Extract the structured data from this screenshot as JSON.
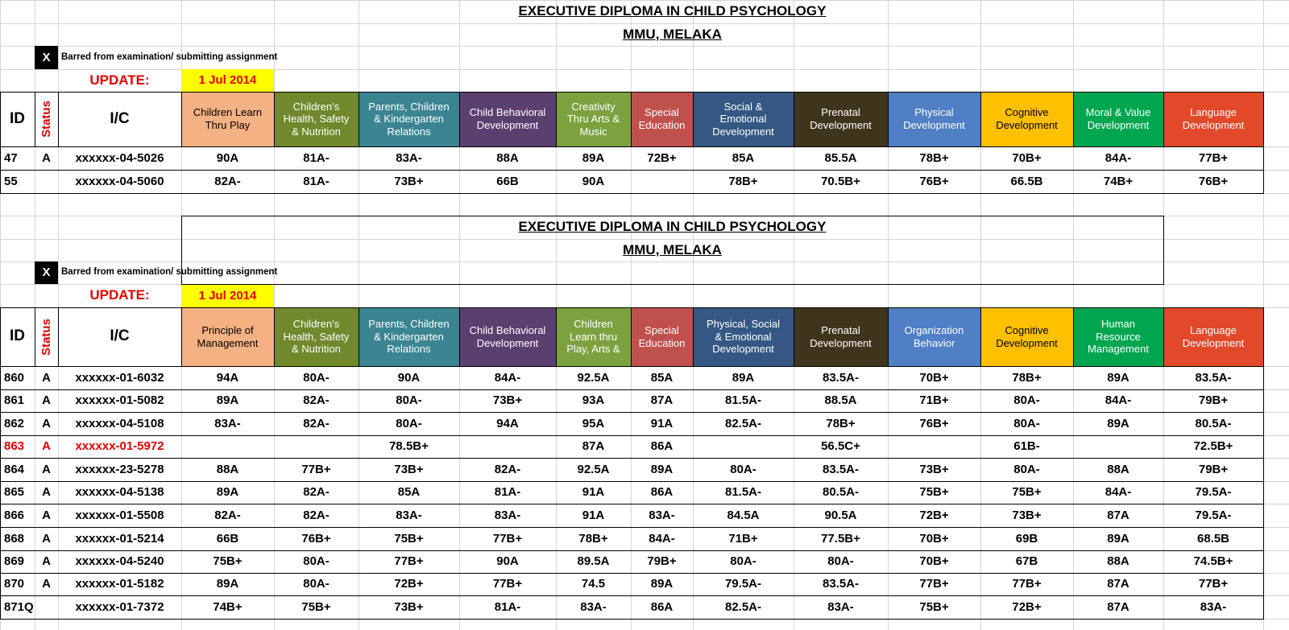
{
  "colors": {
    "gridline": "#d4d4d4",
    "border": "#000000",
    "accent_red": "#e00000",
    "update_highlight": "#ffff00",
    "subject_colors": [
      "#f4b183",
      "#70892d",
      "#3b8592",
      "#5b3f6e",
      "#7ba23f",
      "#c0504d",
      "#345883",
      "#3f341c",
      "#4f7fc4",
      "#ffc000",
      "#00a64f",
      "#e2492a"
    ]
  },
  "sections": [
    {
      "title": "EXECUTIVE DIPLOMA IN CHILD PSYCHOLOGY",
      "subtitle": "MMU, MELAKA",
      "barred_mark": "X",
      "barred_note": "Barred from examination/ submitting assignment",
      "update_label": "UPDATE:",
      "update_date": "1 Jul 2014",
      "id_header": "ID",
      "status_header": "Status",
      "ic_header": "I/C",
      "subjects": [
        {
          "label": "Children Learn\nThru Play",
          "color": "#f4b183",
          "icon": "",
          "light": false
        },
        {
          "label": "Children's\nHealth, Safety\n& Nutrition",
          "color": "#70892d",
          "light": true
        },
        {
          "label": "Parents, Children\n& Kindergarten\nRelations",
          "color": "#3b8592",
          "light": true
        },
        {
          "label": "Child Behavioral\nDevelopment",
          "color": "#5b3f6e",
          "light": true
        },
        {
          "label": "Creativity\nThru Arts &\nMusic",
          "color": "#7ba23f",
          "light": true
        },
        {
          "label": "Special\nEducation",
          "color": "#c0504d",
          "light": true
        },
        {
          "label": "Social &\nEmotional\nDevelopment",
          "color": "#345883",
          "light": true
        },
        {
          "label": "Prenatal\nDevelopment",
          "color": "#3f341c",
          "light": true
        },
        {
          "label": "Physical\nDevelopment",
          "color": "#4f7fc4",
          "light": true
        },
        {
          "label": "Cognitive\nDevelopment",
          "color": "#ffc000",
          "light": false
        },
        {
          "label": "Moral & Value\nDevelopment",
          "color": "#00a64f",
          "light": true
        },
        {
          "label": "Language\nDevelopment",
          "color": "#e2492a",
          "light": true
        }
      ],
      "rows": [
        {
          "id": "47",
          "status": "A",
          "ic": "xxxxxx-04-5026",
          "red": false,
          "grades": [
            "90A",
            "81A-",
            "83A-",
            "88A",
            "89A",
            "72B+",
            "85A",
            "85.5A",
            "78B+",
            "70B+",
            "84A-",
            "77B+"
          ]
        },
        {
          "id": "55",
          "status": "",
          "ic": "xxxxxx-04-5060",
          "red": false,
          "grades": [
            "82A-",
            "81A-",
            "73B+",
            "66B",
            "90A",
            "",
            "78B+",
            "70.5B+",
            "76B+",
            "66.5B",
            "74B+",
            "76B+"
          ]
        }
      ]
    },
    {
      "title": "EXECUTIVE DIPLOMA IN CHILD PSYCHOLOGY",
      "subtitle": "MMU, MELAKA",
      "barred_mark": "X",
      "barred_note": "Barred from examination/ submitting assignment",
      "update_label": "UPDATE:",
      "update_date": "1 Jul 2014",
      "id_header": "ID",
      "status_header": "Status",
      "ic_header": "I/C",
      "subjects": [
        {
          "label": "Principle of\nManagement",
          "color": "#f4b183",
          "light": false
        },
        {
          "label": "Children's\nHealth, Safety\n& Nutrition",
          "color": "#70892d",
          "light": true
        },
        {
          "label": "Parents, Children\n& Kindergarten\nRelations",
          "color": "#3b8592",
          "light": true
        },
        {
          "label": "Child Behavioral\nDevelopment",
          "color": "#5b3f6e",
          "light": true
        },
        {
          "label": "Children\nLearn thru\nPlay, Arts &",
          "color": "#7ba23f",
          "light": true
        },
        {
          "label": "Special\nEducation",
          "color": "#c0504d",
          "light": true
        },
        {
          "label": "Physical, Social\n& Emotional\nDevelopment",
          "color": "#345883",
          "light": true
        },
        {
          "label": "Prenatal\nDevelopment",
          "color": "#3f341c",
          "light": true
        },
        {
          "label": "Organization\nBehavior",
          "color": "#4f7fc4",
          "light": true
        },
        {
          "label": "Cognitive\nDevelopment",
          "color": "#ffc000",
          "light": false
        },
        {
          "label": "Human\nResource\nManagement",
          "color": "#00a64f",
          "light": true
        },
        {
          "label": "Language\nDevelopment",
          "color": "#e2492a",
          "light": true
        }
      ],
      "rows": [
        {
          "id": "860",
          "status": "A",
          "ic": "xxxxxx-01-6032",
          "red": false,
          "grades": [
            "94A",
            "80A-",
            "90A",
            "84A-",
            "92.5A",
            "85A",
            "89A",
            "83.5A-",
            "70B+",
            "78B+",
            "89A",
            "83.5A-"
          ]
        },
        {
          "id": "861",
          "status": "A",
          "ic": "xxxxxx-01-5082",
          "red": false,
          "grades": [
            "89A",
            "82A-",
            "80A-",
            "73B+",
            "93A",
            "87A",
            "81.5A-",
            "88.5A",
            "71B+",
            "80A-",
            "84A-",
            "79B+"
          ]
        },
        {
          "id": "862",
          "status": "A",
          "ic": "xxxxxx-04-5108",
          "red": false,
          "grades": [
            "83A-",
            "82A-",
            "80A-",
            "94A",
            "95A",
            "91A",
            "82.5A-",
            "78B+",
            "76B+",
            "80A-",
            "89A",
            "80.5A-"
          ]
        },
        {
          "id": "863",
          "status": "A",
          "ic": "xxxxxx-01-5972",
          "red": true,
          "grades": [
            "",
            "",
            "78.5B+",
            "",
            "87A",
            "86A",
            "",
            "56.5C+",
            "",
            "61B-",
            "",
            "72.5B+"
          ]
        },
        {
          "id": "864",
          "status": "A",
          "ic": "xxxxxx-23-5278",
          "red": false,
          "grades": [
            "88A",
            "77B+",
            "73B+",
            "82A-",
            "92.5A",
            "89A",
            "80A-",
            "83.5A-",
            "73B+",
            "80A-",
            "88A",
            "79B+"
          ]
        },
        {
          "id": "865",
          "status": "A",
          "ic": "xxxxxx-04-5138",
          "red": false,
          "grades": [
            "89A",
            "82A-",
            "85A",
            "81A-",
            "91A",
            "86A",
            "81.5A-",
            "80.5A-",
            "75B+",
            "75B+",
            "84A-",
            "79.5A-"
          ]
        },
        {
          "id": "866",
          "status": "A",
          "ic": "xxxxxx-01-5508",
          "red": false,
          "grades": [
            "82A-",
            "82A-",
            "83A-",
            "83A-",
            "91A",
            "83A-",
            "84.5A",
            "90.5A",
            "72B+",
            "73B+",
            "87A",
            "79.5A-"
          ]
        },
        {
          "id": "868",
          "status": "A",
          "ic": "xxxxxx-01-5214",
          "red": false,
          "grades": [
            "66B",
            "76B+",
            "75B+",
            "77B+",
            "78B+",
            "84A-",
            "71B+",
            "77.5B+",
            "70B+",
            "69B",
            "89A",
            "68.5B"
          ]
        },
        {
          "id": "869",
          "status": "A",
          "ic": "xxxxxx-04-5240",
          "red": false,
          "grades": [
            "75B+",
            "80A-",
            "77B+",
            "90A",
            "89.5A",
            "79B+",
            "80A-",
            "80A-",
            "70B+",
            "67B",
            "88A",
            "74.5B+"
          ]
        },
        {
          "id": "870",
          "status": "A",
          "ic": "xxxxxx-01-5182",
          "red": false,
          "grades": [
            "89A",
            "80A-",
            "72B+",
            "77B+",
            "74.5",
            "89A",
            "79.5A-",
            "83.5A-",
            "77B+",
            "77B+",
            "87A",
            "77B+"
          ]
        },
        {
          "id": "871Q",
          "status": "",
          "ic": "xxxxxx-01-7372",
          "red": false,
          "grades": [
            "74B+",
            "75B+",
            "73B+",
            "81A-",
            "83A-",
            "86A",
            "82.5A-",
            "83A-",
            "75B+",
            "72B+",
            "87A",
            "83A-"
          ]
        }
      ]
    }
  ]
}
